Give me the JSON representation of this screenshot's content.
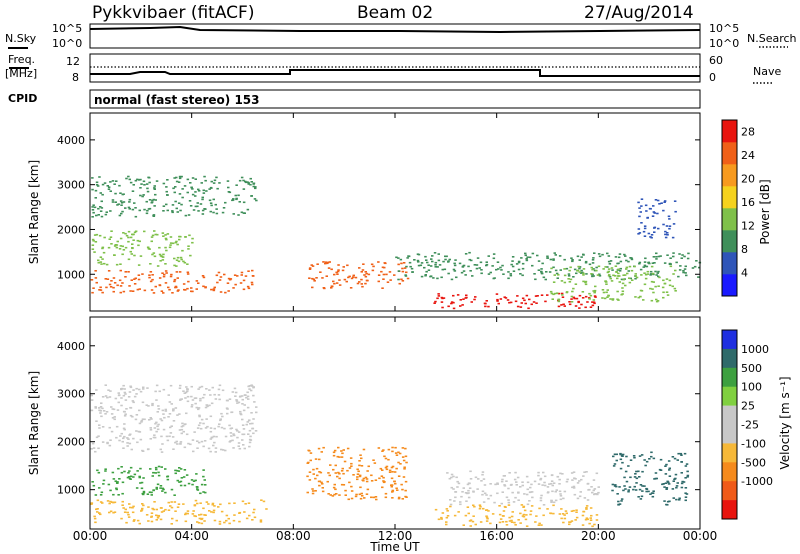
{
  "header": {
    "station": "Pykkvibaer (fitACF)",
    "beam": "Beam 02",
    "date": "27/Aug/2014"
  },
  "side_labels": {
    "nsky": "N.Sky",
    "freq_line1": "Freq.",
    "freq_line2": "[MHz]",
    "cpid": "CPID",
    "nsearch": "N.Search",
    "nave": "Nave"
  },
  "strips": {
    "nsky_ticks": [
      "10^5",
      "10^0"
    ],
    "nsearch_ticks": [
      "10^5",
      "10^0"
    ],
    "freq_ticks": [
      "12",
      "8"
    ],
    "nave_ticks": [
      "60",
      "0"
    ],
    "cpid_text": "normal (fast stereo) 153"
  },
  "colors": {
    "power_scale": [
      "#1a1aff",
      "#2f55b8",
      "#3f8f5a",
      "#7fc04a",
      "#f5d21e",
      "#f79a1f",
      "#f06018",
      "#e8140e"
    ],
    "velocity_scale": [
      "#1f2fe0",
      "#2f6a6a",
      "#3da040",
      "#80d040",
      "#c8c8c8",
      "#c8c8c8",
      "#f6b838",
      "#f58a1c",
      "#f05a18",
      "#e8140e"
    ]
  },
  "chart_data": [
    {
      "type": "heatmap",
      "panel": "power",
      "xlabel": "",
      "ylabel": "Slant Range [km]",
      "x_ticks": [
        "00:00",
        "04:00",
        "08:00",
        "12:00",
        "16:00",
        "20:00",
        "00:00"
      ],
      "y_ticks": [
        1000,
        2000,
        3000,
        4000
      ],
      "ylim": [
        180,
        4600
      ],
      "colorbar": {
        "label": "Power [dB]",
        "ticks": [
          4,
          8,
          12,
          16,
          20,
          24,
          28
        ],
        "range": [
          0,
          30
        ]
      },
      "regions": [
        {
          "t": [
            0.0,
            6.5
          ],
          "range_km": [
            600,
            1100
          ],
          "value_db": 26
        },
        {
          "t": [
            0.0,
            4.0
          ],
          "range_km": [
            1200,
            2000
          ],
          "value_db": 12
        },
        {
          "t": [
            0.0,
            6.5
          ],
          "range_km": [
            2300,
            3200
          ],
          "value_db": 8
        },
        {
          "t": [
            8.5,
            12.5
          ],
          "range_km": [
            700,
            1300
          ],
          "value_db": 24
        },
        {
          "t": [
            13.5,
            20.0
          ],
          "range_km": [
            250,
            600
          ],
          "value_db": 28
        },
        {
          "t": [
            12.0,
            24.0
          ],
          "range_km": [
            900,
            1500
          ],
          "value_db": 8
        },
        {
          "t": [
            18.0,
            23.0
          ],
          "range_km": [
            400,
            1200
          ],
          "value_db": 14
        },
        {
          "t": [
            21.5,
            23.0
          ],
          "range_km": [
            1800,
            2700
          ],
          "value_db": 6
        }
      ]
    },
    {
      "type": "heatmap",
      "panel": "velocity",
      "xlabel": "Time UT",
      "ylabel": "Slant Range [km]",
      "x_ticks": [
        "00:00",
        "04:00",
        "08:00",
        "12:00",
        "16:00",
        "20:00",
        "00:00"
      ],
      "y_ticks": [
        1000,
        2000,
        3000,
        4000
      ],
      "ylim": [
        180,
        4600
      ],
      "colorbar": {
        "label": "Velocity [m s⁻¹]",
        "ticks": [
          1000,
          500,
          100,
          25,
          -25,
          -100,
          -500,
          -1000
        ]
      },
      "regions": [
        {
          "t": [
            0.0,
            6.5
          ],
          "range_km": [
            1800,
            3200
          ],
          "value_ms": 0
        },
        {
          "t": [
            0.0,
            4.5
          ],
          "range_km": [
            900,
            1500
          ],
          "value_ms": 150
        },
        {
          "t": [
            0.0,
            7.0
          ],
          "range_km": [
            300,
            800
          ],
          "value_ms": -200
        },
        {
          "t": [
            8.5,
            12.5
          ],
          "range_km": [
            800,
            1900
          ],
          "value_ms": -600
        },
        {
          "t": [
            13.5,
            20.0
          ],
          "range_km": [
            250,
            700
          ],
          "value_ms": -150
        },
        {
          "t": [
            14.0,
            20.0
          ],
          "range_km": [
            700,
            1400
          ],
          "value_ms": 0
        },
        {
          "t": [
            20.5,
            23.5
          ],
          "range_km": [
            700,
            1800
          ],
          "value_ms": 700
        }
      ]
    }
  ]
}
